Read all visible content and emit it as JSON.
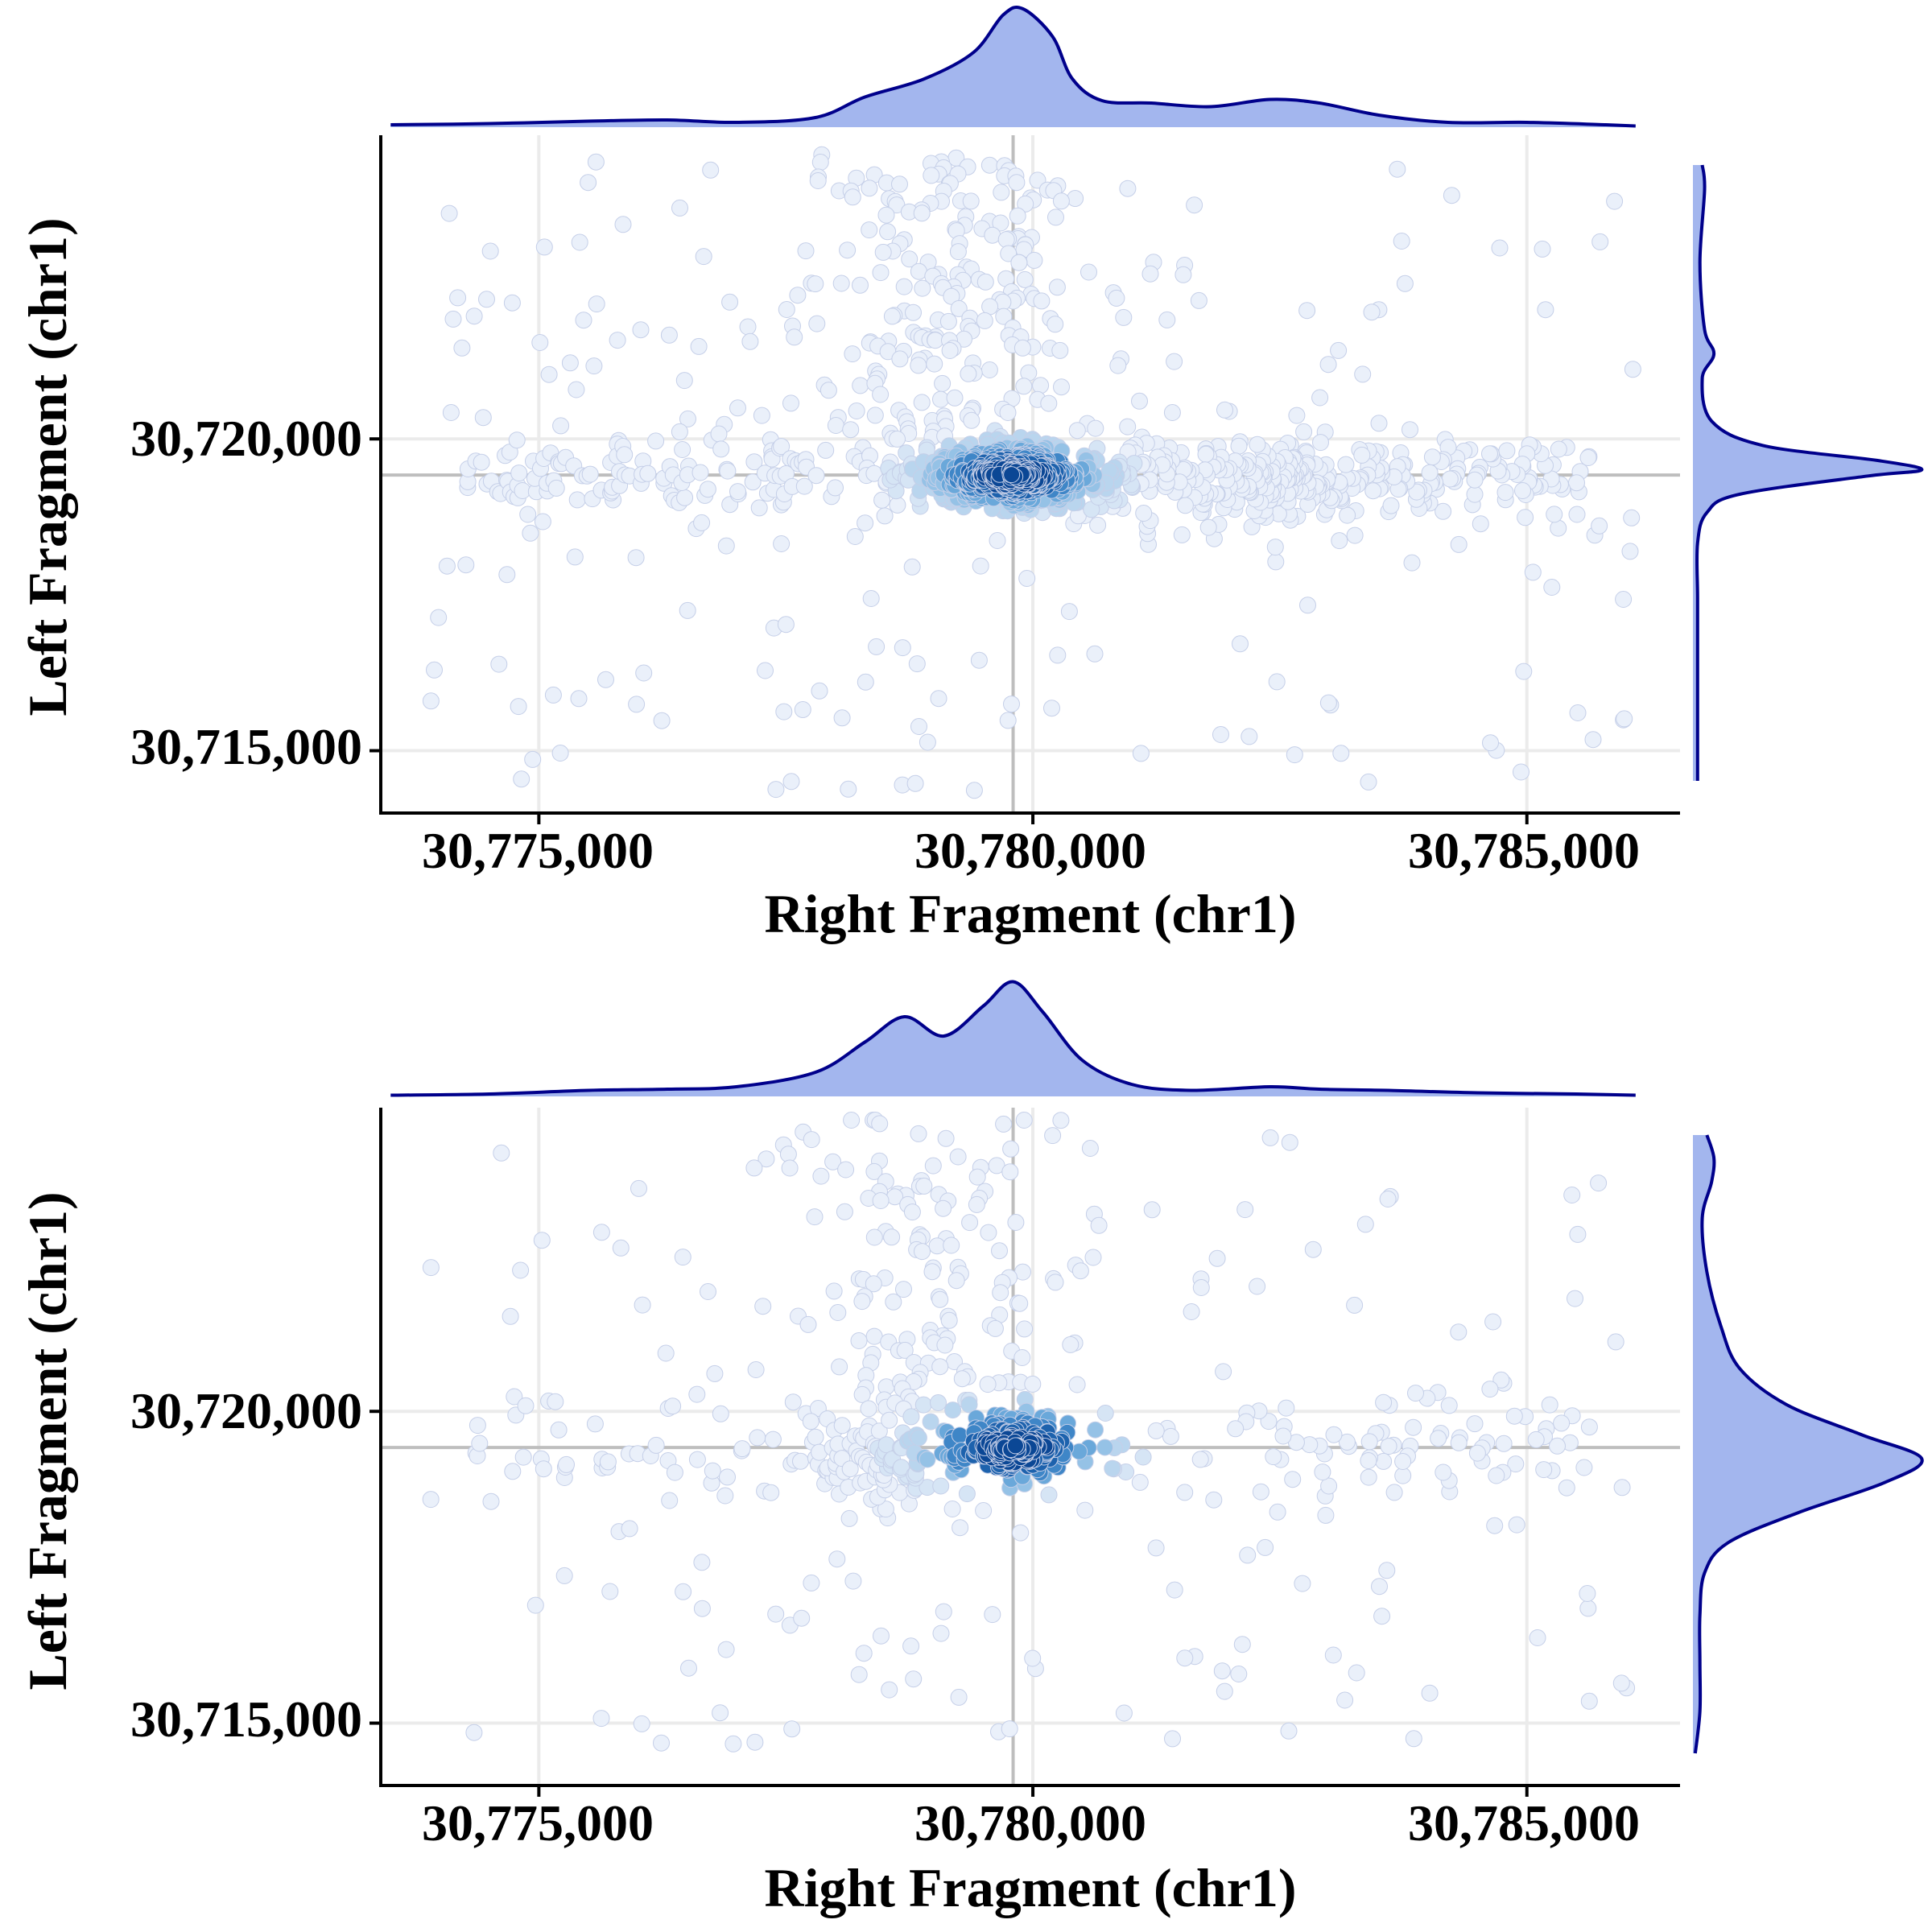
{
  "colors": {
    "background": "#ffffff",
    "grid": "#ebebeb",
    "axis_line": "#000000",
    "refline": "#bebebe",
    "density_fill": "#a3b6ee",
    "density_stroke": "#00008b",
    "point_stroke": "#c5cfe8",
    "point_palette": [
      "#eaf0fa",
      "#d6e5f5",
      "#b9d5ee",
      "#95c2e6",
      "#6aa8da",
      "#3f86c7",
      "#1d62ad",
      "#0b4795"
    ]
  },
  "chart_data": [
    {
      "type": "scatter",
      "subtype": "density-colored scatter with marginal density plots",
      "xlabel": "Right Fragment (chr1)",
      "ylabel": "Left Fragment (chr1)",
      "xlim": [
        30773400,
        30786550
      ],
      "ylim": [
        30714000,
        30724870
      ],
      "xticks": [
        30775000,
        30780000,
        30785000
      ],
      "xtick_labels": [
        "30,775,000",
        "30,780,000",
        "30,785,000"
      ],
      "yticks": [
        30715000,
        30720000
      ],
      "ytick_labels": [
        "30,715,000",
        "30,720,000"
      ],
      "grid": true,
      "reference_lines": {
        "x": 30779800,
        "y": 30719420
      },
      "points": {
        "count": 1300,
        "center": [
          30779800,
          30719420
        ],
        "main_cluster_spread": [
          450,
          260
        ],
        "secondary_center": [
          30782400,
          30719280
        ],
        "notes": "dense core at the reference crossing; horizontal band along y=30,719,400; vertical streak above core"
      },
      "marginal_x": [
        [
          30773500,
          0.02
        ],
        [
          30774500,
          0.03
        ],
        [
          30775500,
          0.05
        ],
        [
          30776300,
          0.06
        ],
        [
          30777000,
          0.04
        ],
        [
          30777800,
          0.08
        ],
        [
          30778300,
          0.25
        ],
        [
          30778900,
          0.4
        ],
        [
          30779400,
          0.62
        ],
        [
          30779700,
          0.93
        ],
        [
          30779900,
          0.98
        ],
        [
          30780200,
          0.75
        ],
        [
          30780400,
          0.4
        ],
        [
          30780700,
          0.22
        ],
        [
          30781200,
          0.2
        ],
        [
          30781800,
          0.17
        ],
        [
          30782400,
          0.23
        ],
        [
          30782900,
          0.2
        ],
        [
          30783500,
          0.1
        ],
        [
          30784200,
          0.04
        ],
        [
          30785000,
          0.04
        ],
        [
          30785800,
          0.02
        ],
        [
          30786100,
          0.01
        ]
      ],
      "marginal_y": [
        [
          30714300,
          0.02
        ],
        [
          30715200,
          0.02
        ],
        [
          30716300,
          0.02
        ],
        [
          30717300,
          0.02
        ],
        [
          30718200,
          0.02
        ],
        [
          30718700,
          0.06
        ],
        [
          30719000,
          0.2
        ],
        [
          30719300,
          0.75
        ],
        [
          30719400,
          0.98
        ],
        [
          30719550,
          0.8
        ],
        [
          30719800,
          0.3
        ],
        [
          30720200,
          0.08
        ],
        [
          30720900,
          0.04
        ],
        [
          30721300,
          0.09
        ],
        [
          30721700,
          0.05
        ],
        [
          30722800,
          0.03
        ],
        [
          30724000,
          0.05
        ],
        [
          30724400,
          0.04
        ]
      ]
    },
    {
      "type": "scatter",
      "subtype": "density-colored scatter with marginal density plots",
      "xlabel": "Right Fragment (chr1)",
      "ylabel": "Left Fragment (chr1)",
      "xlim": [
        30773400,
        30786550
      ],
      "ylim": [
        30714000,
        30724870
      ],
      "xticks": [
        30775000,
        30780000,
        30785000
      ],
      "xtick_labels": [
        "30,775,000",
        "30,780,000",
        "30,785,000"
      ],
      "yticks": [
        30715000,
        30720000
      ],
      "ytick_labels": [
        "30,715,000",
        "30,720,000"
      ],
      "grid": true,
      "reference_lines": {
        "x": 30779800,
        "y": 30719420
      },
      "points": {
        "count": 700,
        "center": [
          30779800,
          30719420
        ],
        "main_cluster_spread": [
          550,
          380
        ],
        "secondary_center": [
          30778500,
          30719300
        ],
        "notes": "core at reference crossing with a second lobe near 30,778,500; sparse scatter elsewhere"
      },
      "marginal_x": [
        [
          30773500,
          0.01
        ],
        [
          30774500,
          0.02
        ],
        [
          30775500,
          0.05
        ],
        [
          30776300,
          0.06
        ],
        [
          30777000,
          0.08
        ],
        [
          30777800,
          0.2
        ],
        [
          30778300,
          0.45
        ],
        [
          30778700,
          0.66
        ],
        [
          30779100,
          0.5
        ],
        [
          30779500,
          0.75
        ],
        [
          30779800,
          0.95
        ],
        [
          30780100,
          0.7
        ],
        [
          30780500,
          0.3
        ],
        [
          30781000,
          0.1
        ],
        [
          30781600,
          0.05
        ],
        [
          30782400,
          0.08
        ],
        [
          30782900,
          0.06
        ],
        [
          30783600,
          0.05
        ],
        [
          30784500,
          0.03
        ],
        [
          30785500,
          0.02
        ],
        [
          30786100,
          0.01
        ]
      ],
      "marginal_y": [
        [
          30714500,
          0.01
        ],
        [
          30715200,
          0.03
        ],
        [
          30716000,
          0.03
        ],
        [
          30716800,
          0.03
        ],
        [
          30717500,
          0.05
        ],
        [
          30718000,
          0.15
        ],
        [
          30718500,
          0.45
        ],
        [
          30719000,
          0.82
        ],
        [
          30719400,
          0.98
        ],
        [
          30719800,
          0.72
        ],
        [
          30720300,
          0.4
        ],
        [
          30720900,
          0.2
        ],
        [
          30721600,
          0.12
        ],
        [
          30722500,
          0.06
        ],
        [
          30723400,
          0.04
        ],
        [
          30724000,
          0.08
        ],
        [
          30724400,
          0.09
        ],
        [
          30724780,
          0.06
        ]
      ]
    }
  ]
}
